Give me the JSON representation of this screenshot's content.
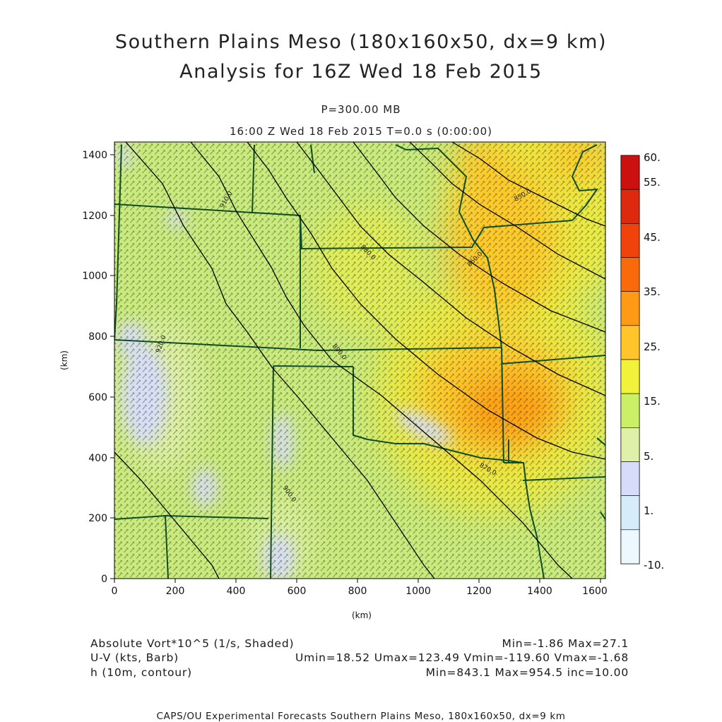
{
  "title": {
    "line1": "Southern Plains Meso (180x160x50, dx=9 km)",
    "line2": "Analysis for 16Z Wed 18 Feb 2015"
  },
  "subtitle": {
    "level": "P=300.00 MB",
    "time": "16:00 Z Wed 18 Feb 2015    T=0.0 s (0:00:00)"
  },
  "axes": {
    "x_label": "(km)",
    "y_label": "(km)",
    "x_ticks": [
      "0",
      "200",
      "400",
      "600",
      "800",
      "1000",
      "1200",
      "1400",
      "1600"
    ],
    "y_ticks": [
      "0",
      "200",
      "400",
      "600",
      "800",
      "1000",
      "1200",
      "1400"
    ],
    "x_range": [
      0,
      1620
    ],
    "y_range": [
      0,
      1440
    ]
  },
  "colorbar": {
    "labels": [
      "60.",
      "55.",
      "45.",
      "35.",
      "25.",
      "15.",
      "5.",
      "1.",
      "-10."
    ],
    "colors": [
      "#cc1010",
      "#dd2a0e",
      "#f0420a",
      "#fb6a0a",
      "#ff9a16",
      "#ffc52a",
      "#f2f23a",
      "#cbf068",
      "#dff0a8",
      "#d7dcfb",
      "#d7ecfa",
      "#ecf8fd"
    ]
  },
  "contour_labels": [
    "920.0",
    "910.0",
    "900.0",
    "890.0",
    "880.0",
    "870.0",
    "860.0",
    "850.0"
  ],
  "fields": {
    "shaded": "Absolute Vort*10^5 (1/s, Shaded)",
    "shaded_stats": "Min=-1.86 Max=27.1",
    "barb": "U-V (kts, Barb)",
    "barb_stats": "Umin=18.52 Umax=123.49 Vmin=-119.60 Vmax=-1.68",
    "contour": "h (10m, contour)",
    "contour_stats": "Min=843.1 Max=954.5 inc=10.00"
  },
  "footer": "CAPS/OU Experimental Forecasts  Southern Plains Meso, 180x160x50, dx=9 km",
  "colors": {
    "background_field": "#c9ea7c",
    "border_lines": "#0f4d22",
    "contours": "#000000"
  }
}
